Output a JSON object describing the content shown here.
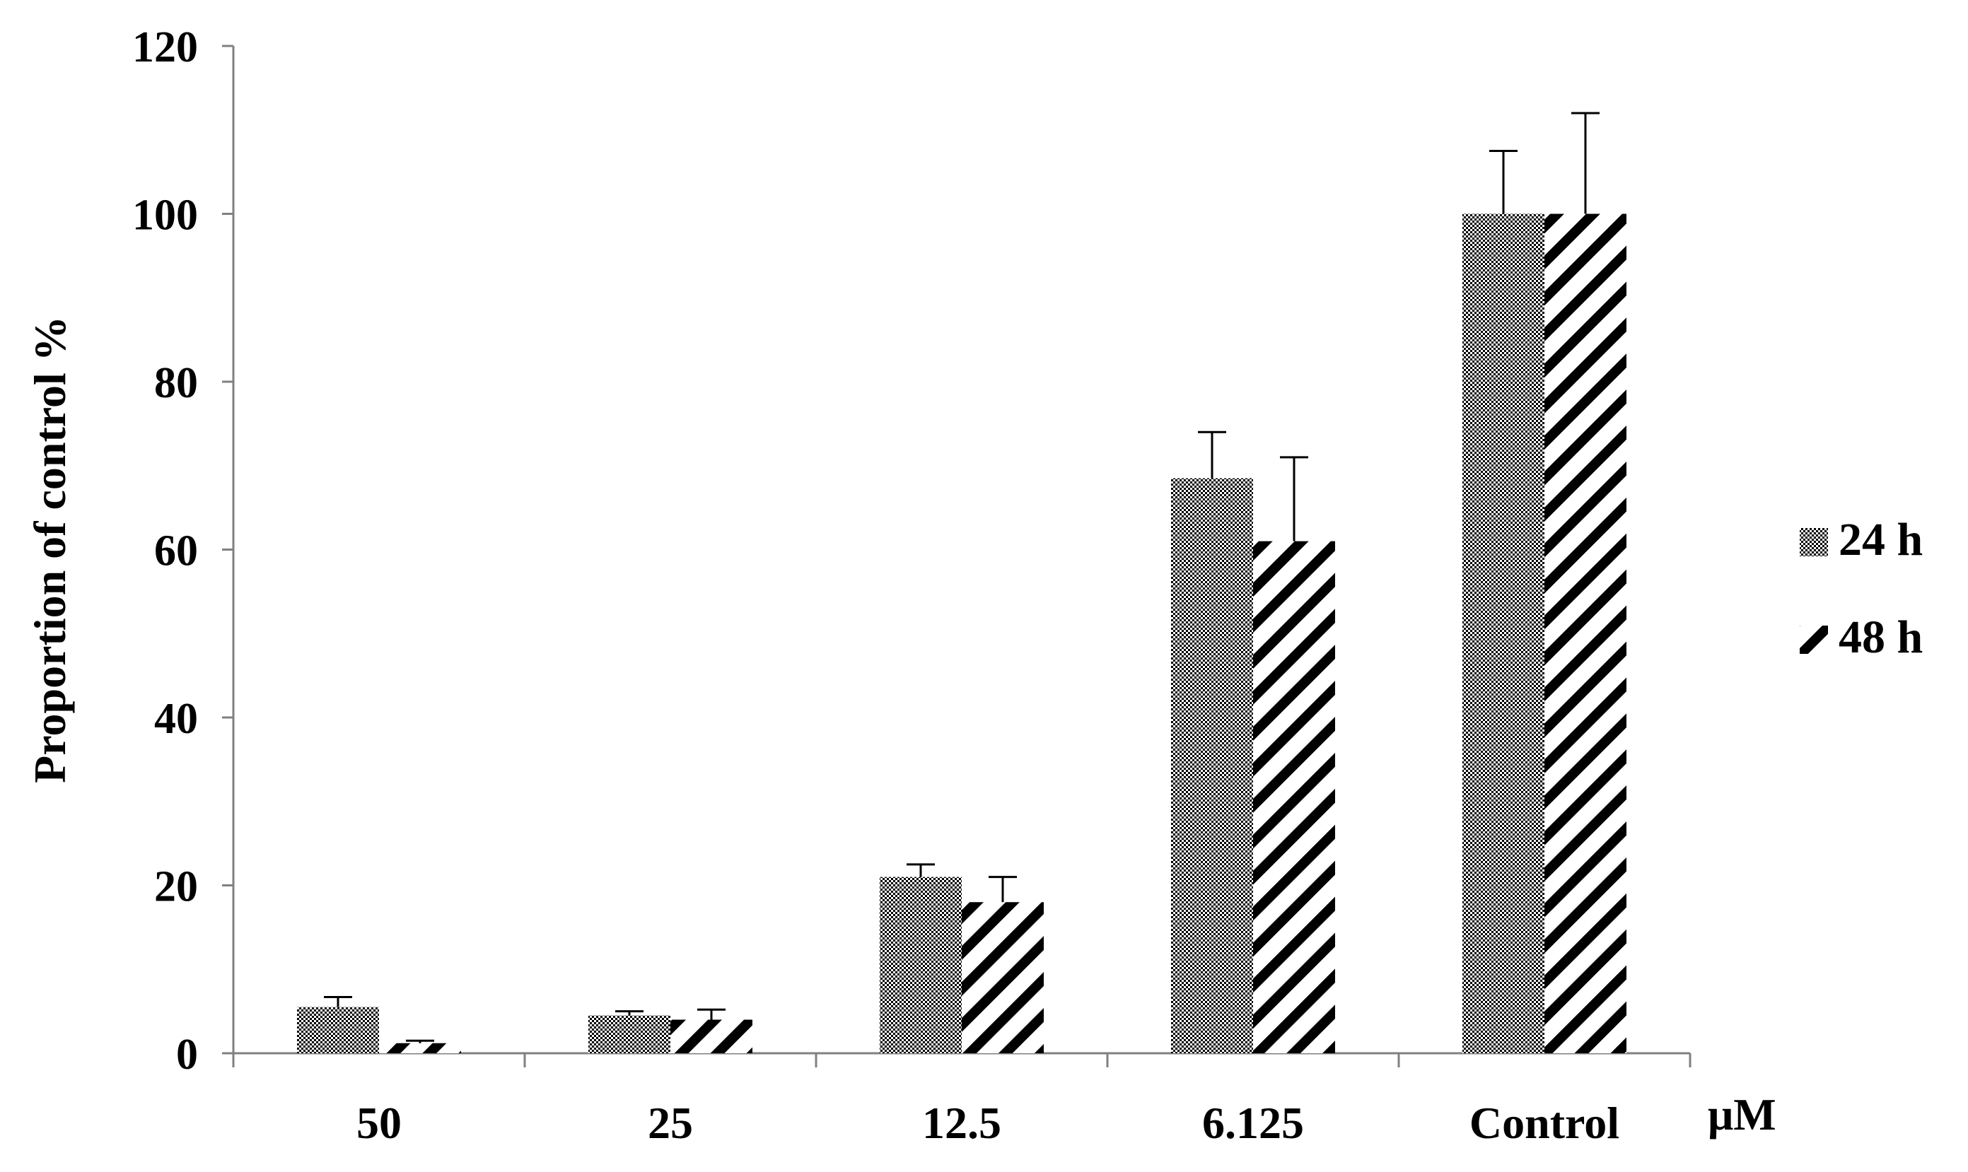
{
  "chart_data": {
    "type": "bar",
    "title": "",
    "xlabel": "",
    "x_unit": "μM",
    "ylabel": "Proportion of control %",
    "categories": [
      "50",
      "25",
      "12.5",
      "6.125",
      "Control"
    ],
    "ylim": [
      0,
      120
    ],
    "yticks": [
      0,
      20,
      40,
      60,
      80,
      100,
      120
    ],
    "grid": false,
    "legend_position": "right",
    "series": [
      {
        "name": "24 h",
        "pattern": "dotted-fill",
        "color": "#000000",
        "values": [
          5.5,
          4.5,
          21,
          68.5,
          100
        ],
        "errors": [
          1.2,
          0.5,
          1.5,
          5.5,
          7.5
        ]
      },
      {
        "name": "48 h",
        "pattern": "diagonal-stripes",
        "color": "#000000",
        "values": [
          1.2,
          4.0,
          18,
          61,
          100
        ],
        "errors": [
          0.3,
          1.2,
          3.0,
          10,
          12
        ]
      }
    ]
  }
}
